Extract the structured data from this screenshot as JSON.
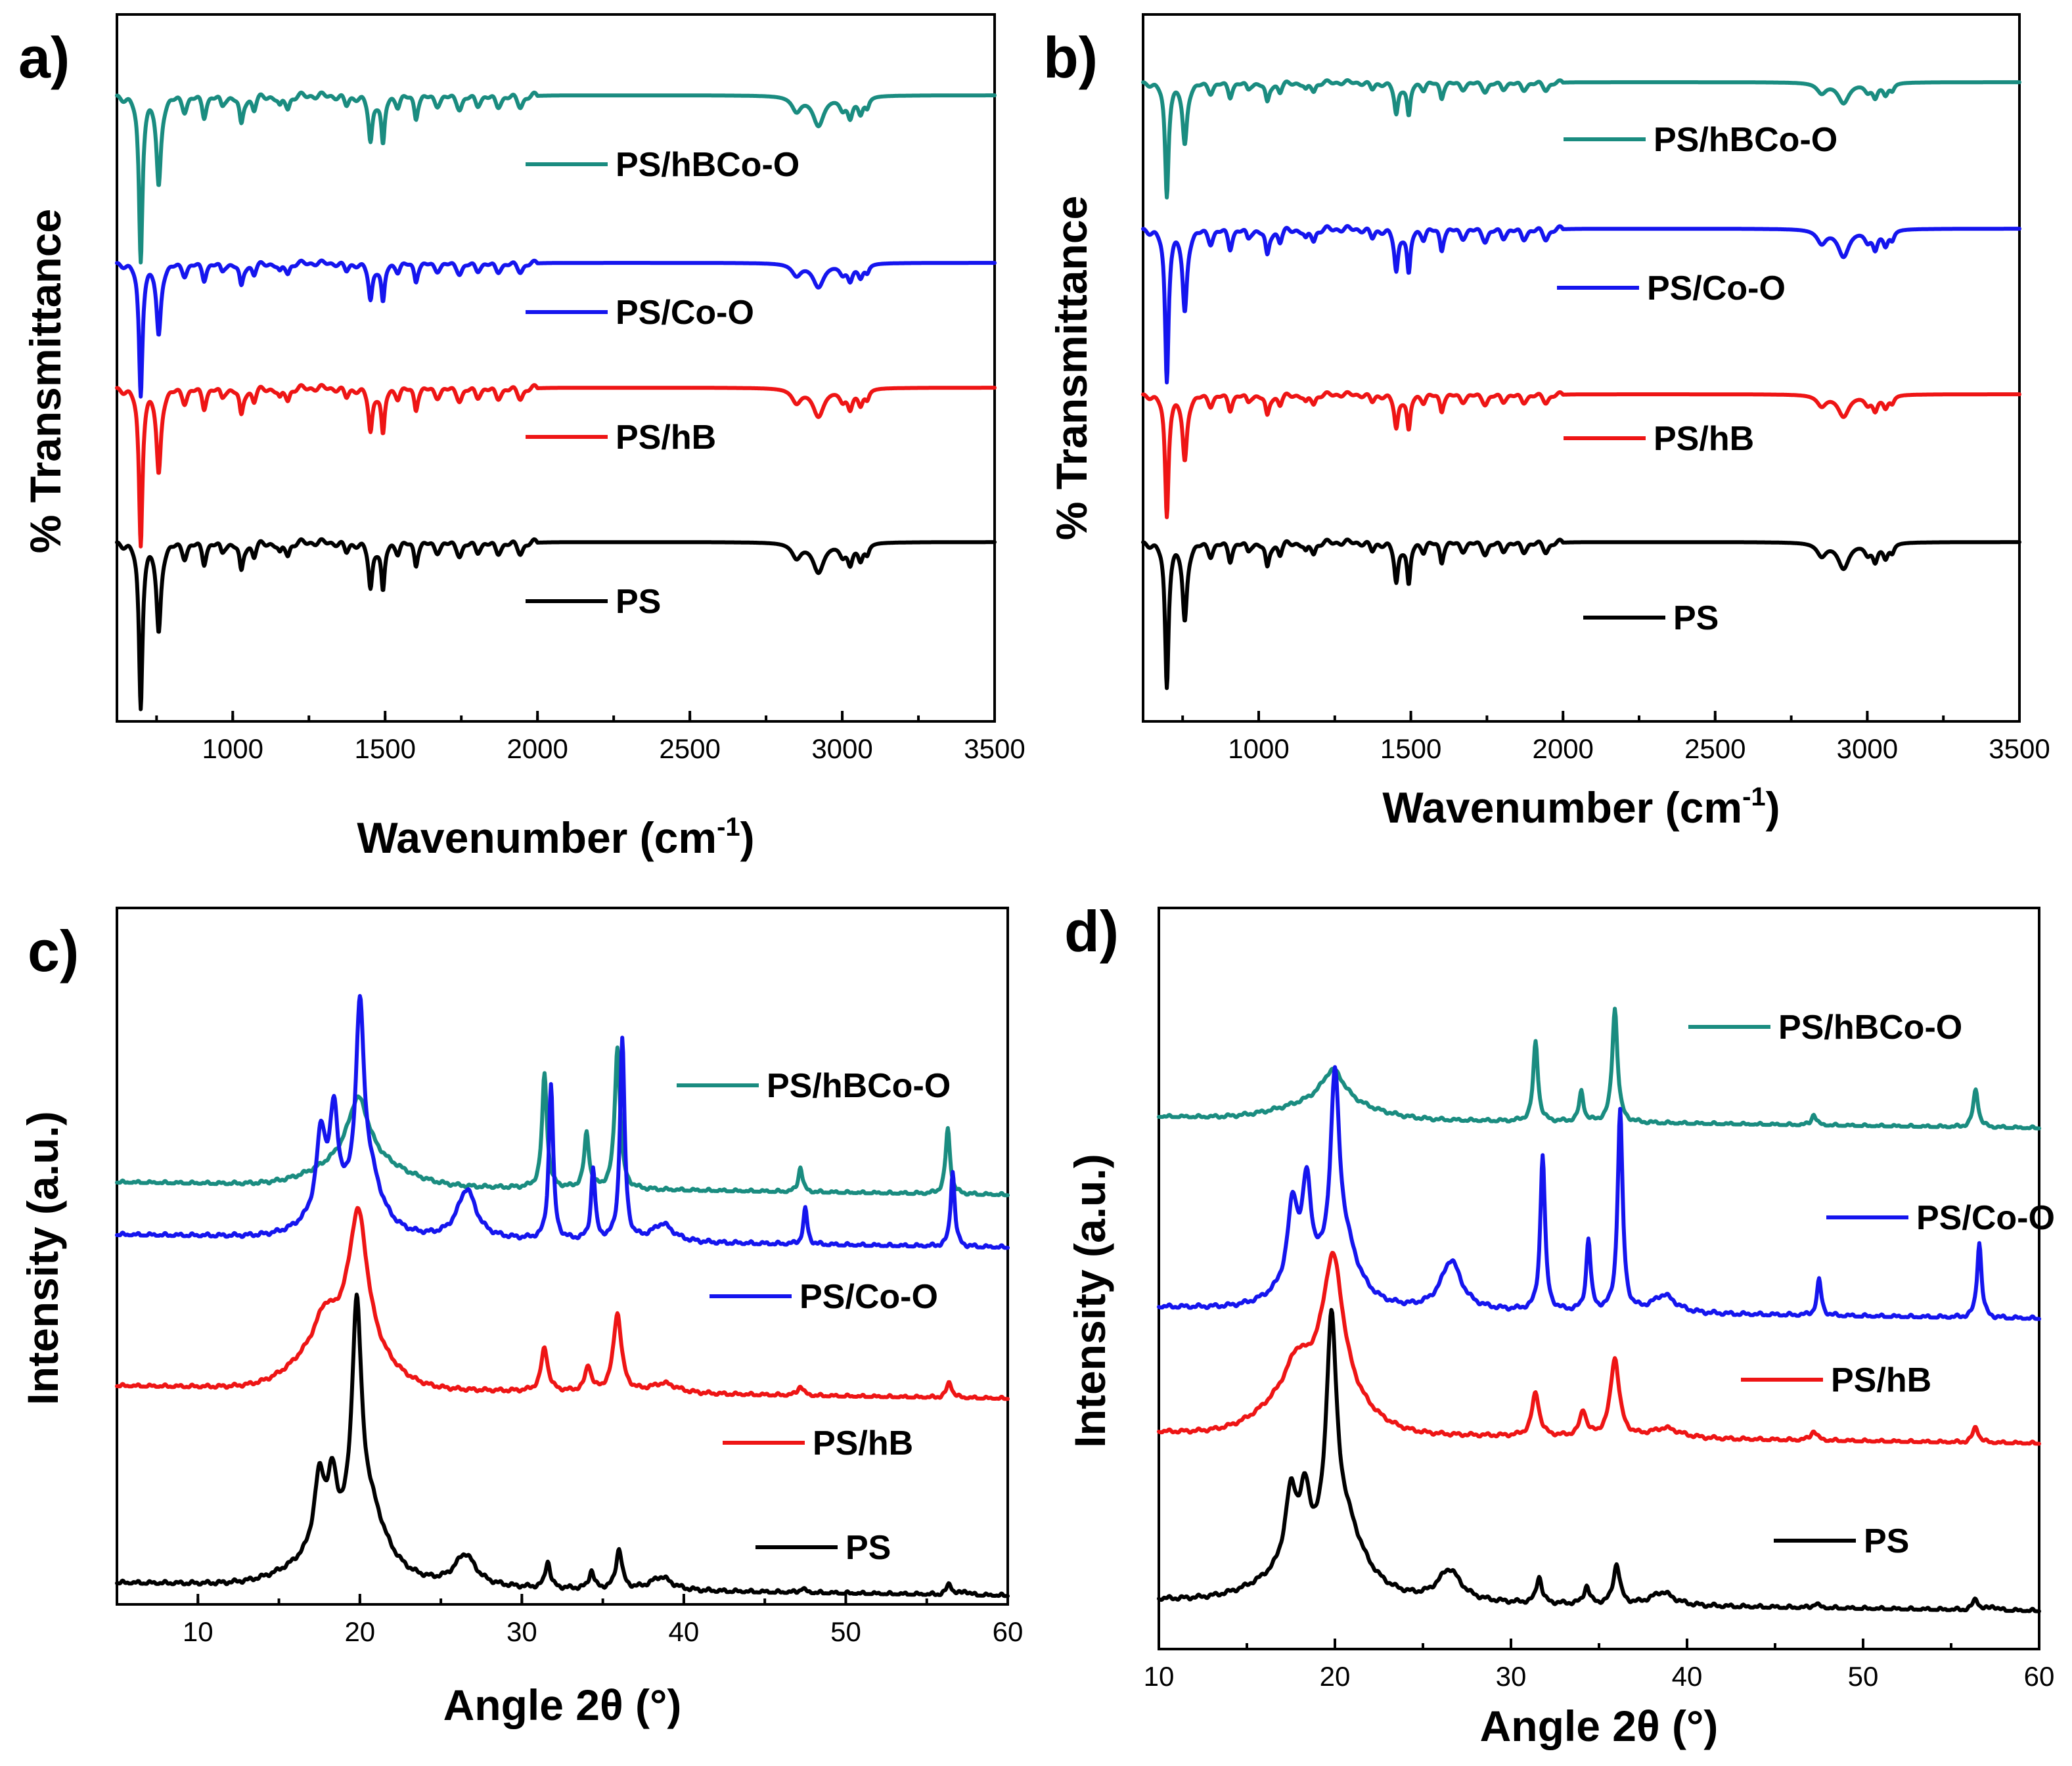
{
  "figure": {
    "panels": [
      "a)",
      "b)",
      "c)",
      "d)"
    ]
  },
  "chart_data": [
    {
      "id": "a",
      "type": "line",
      "kind": "ftir",
      "panel_label": "a)",
      "xlabel": "Wavenumber (cm",
      "xlabel_sup": "-1",
      "xlabel_end": ")",
      "ylabel": "% Transmittance",
      "xlim": [
        620,
        3500
      ],
      "xticks": [
        1000,
        1500,
        2000,
        2500,
        3000,
        3500
      ],
      "xtick_labels": [
        "1000",
        "1500",
        "2000",
        "2500",
        "3000",
        "3500"
      ],
      "series": [
        {
          "name": "PS/hBCo-O",
          "color": "#1a8c80",
          "offset": 0,
          "depth": 1.0,
          "legend_label": "PS/hBCo-O"
        },
        {
          "name": "PS/Co-O",
          "color": "#1515ee",
          "offset": 1,
          "depth": 0.8,
          "legend_label": "PS/Co-O"
        },
        {
          "name": "PS/hB",
          "color": "#ee1515",
          "offset": 2,
          "depth": 0.95,
          "legend_label": "PS/hB"
        },
        {
          "name": "PS",
          "color": "#000000",
          "offset": 3,
          "depth": 1.0,
          "legend_label": "PS"
        }
      ]
    },
    {
      "id": "b",
      "type": "line",
      "kind": "ftir",
      "panel_label": "b)",
      "xlabel": "Wavenumber (cm",
      "xlabel_sup": "-1",
      "xlabel_end": ")",
      "ylabel": "% Transmittance",
      "xlim": [
        620,
        3500
      ],
      "xticks": [
        1000,
        1500,
        2000,
        2500,
        3000,
        3500
      ],
      "xtick_labels": [
        "1000",
        "1500",
        "2000",
        "2500",
        "3000",
        "3500"
      ],
      "series": [
        {
          "name": "PS/hBCo-O",
          "color": "#1a8c80",
          "offset": 0,
          "depth": 0.75,
          "legend_label": "PS/hBCo-O"
        },
        {
          "name": "PS/Co-O",
          "color": "#1515ee",
          "offset": 1,
          "depth": 1.0,
          "legend_label": "PS/Co-O"
        },
        {
          "name": "PS/hB",
          "color": "#ee1515",
          "offset": 2,
          "depth": 0.8,
          "legend_label": "PS/hB"
        },
        {
          "name": "PS",
          "color": "#000000",
          "offset": 3,
          "depth": 0.95,
          "legend_label": "PS"
        }
      ]
    },
    {
      "id": "c",
      "type": "line",
      "kind": "xrd",
      "panel_label": "c)",
      "xlabel": "Angle 2θ (°)",
      "ylabel": "Intensity (a.u.)",
      "xlim": [
        5,
        60
      ],
      "xticks": [
        10,
        20,
        30,
        40,
        50,
        60
      ],
      "xtick_labels": [
        "10",
        "20",
        "30",
        "40",
        "50",
        "60"
      ],
      "series": [
        {
          "name": "PS/hBCo-O",
          "color": "#1a8c80",
          "pattern": "ps_hbcoo_c",
          "legend_label": "PS/hBCo-O"
        },
        {
          "name": "PS/Co-O",
          "color": "#1515ee",
          "pattern": "ps_coo",
          "legend_label": "PS/Co-O"
        },
        {
          "name": "PS/hB",
          "color": "#ee1515",
          "pattern": "ps_hb",
          "legend_label": "PS/hB"
        },
        {
          "name": "PS",
          "color": "#000000",
          "pattern": "ps",
          "legend_label": "PS"
        }
      ]
    },
    {
      "id": "d",
      "type": "line",
      "kind": "xrd",
      "panel_label": "d)",
      "xlabel": "Angle 2θ (°)",
      "ylabel": "Intensity (a.u.)",
      "xlim": [
        10,
        60
      ],
      "xticks": [
        10,
        20,
        30,
        40,
        50,
        60
      ],
      "xtick_labels": [
        "10",
        "20",
        "30",
        "40",
        "50",
        "60"
      ],
      "series": [
        {
          "name": "PS/hBCo-O",
          "color": "#1a8c80",
          "pattern": "ps_hbcoo_d",
          "legend_label": "PS/hBCo-O"
        },
        {
          "name": "PS/Co-O",
          "color": "#1515ee",
          "pattern": "ps_coo",
          "legend_label": "PS/Co-O"
        },
        {
          "name": "PS/hB",
          "color": "#ee1515",
          "pattern": "ps_hb",
          "legend_label": "PS/hB"
        },
        {
          "name": "PS",
          "color": "#000000",
          "pattern": "ps",
          "legend_label": "PS"
        }
      ]
    }
  ]
}
